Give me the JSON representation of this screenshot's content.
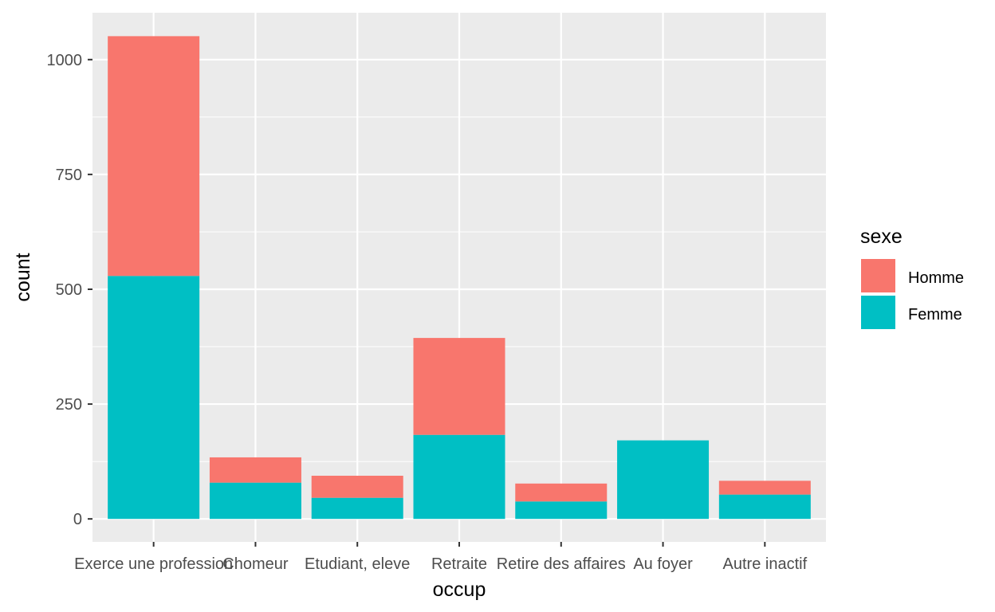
{
  "chart_data": {
    "type": "bar",
    "stacked": true,
    "categories": [
      "Exerce une profession",
      "Chomeur",
      "Etudiant, eleve",
      "Retraite",
      "Retire des affaires",
      "Au foyer",
      "Autre inactif"
    ],
    "series": [
      {
        "name": "Femme",
        "color": "#00BFC4",
        "values": [
          529,
          79,
          46,
          183,
          38,
          171,
          53
        ]
      },
      {
        "name": "Homme",
        "color": "#F8766D",
        "values": [
          522,
          55,
          48,
          211,
          39,
          0,
          30
        ]
      }
    ],
    "xlabel": "occup",
    "ylabel": "count",
    "ylim": [
      -50,
      1102
    ],
    "yticks": [
      0,
      250,
      500,
      750,
      1000
    ],
    "yticks_labels": [
      "0",
      "250",
      "500",
      "750",
      "1000"
    ],
    "legend": {
      "title": "sexe",
      "placement": "right",
      "entries": [
        {
          "label": "Homme",
          "color": "#F8766D"
        },
        {
          "label": "Femme",
          "color": "#00BFC4"
        }
      ]
    },
    "panel_background": "#EBEBEB",
    "grid_color": "#FFFFFF",
    "grid": true
  }
}
